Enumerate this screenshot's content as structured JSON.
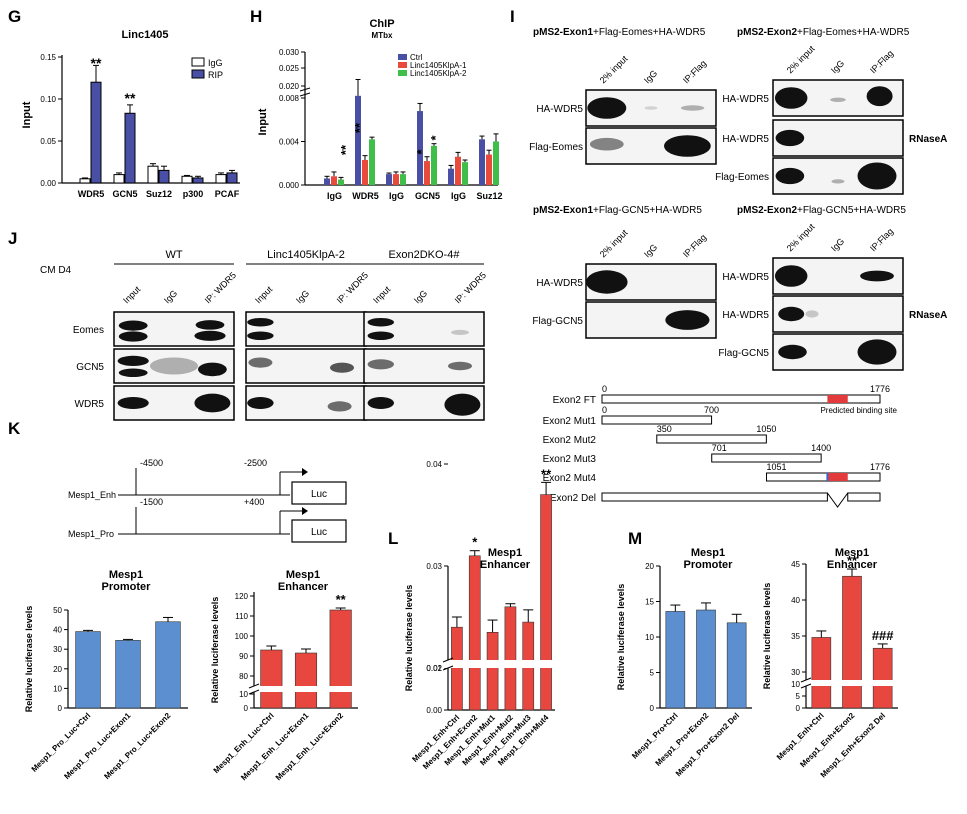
{
  "panel_letters": {
    "G": "G",
    "H": "H",
    "I": "I",
    "J": "J",
    "K": "K",
    "L": "L",
    "M": "M"
  },
  "colors": {
    "blue": "#5b8fd0",
    "navy": "#4a4fa6",
    "red": "#e84a3c",
    "green": "#3fbf4a",
    "redbar": "#e8473f"
  },
  "chart_data": [
    {
      "panel": "G",
      "type": "bar",
      "title": "Linc1405",
      "ylabel": "Input",
      "categories": [
        "WDR5",
        "GCN5",
        "Suz12",
        "p300",
        "PCAF"
      ],
      "series": [
        {
          "name": "IgG",
          "values": [
            0.005,
            0.01,
            0.02,
            0.008,
            0.01
          ],
          "errors": [
            0.001,
            0.002,
            0.003,
            0.001,
            0.002
          ]
        },
        {
          "name": "RIP",
          "values": [
            0.12,
            0.083,
            0.015,
            0.006,
            0.012
          ],
          "errors": [
            0.02,
            0.01,
            0.005,
            0.002,
            0.003
          ]
        }
      ],
      "ylim": [
        0,
        0.15
      ],
      "yticks": [
        "0.00",
        "0.05",
        "0.10",
        "0.15"
      ],
      "annotations": [
        "**",
        "**"
      ]
    },
    {
      "panel": "H",
      "type": "bar",
      "title": "ChIP",
      "subtitle": "MTbx",
      "ylabel": "Input",
      "categories": [
        "IgG",
        "WDR5",
        "IgG",
        "GCN5",
        "IgG",
        "Suz12"
      ],
      "series": [
        {
          "name": "Ctrl",
          "values": [
            0.0006,
            0.0082,
            0.001,
            0.0068,
            0.0015,
            0.0042
          ],
          "errors": [
            0.0002,
            0.0015,
            0.0001,
            0.0007,
            0.0003,
            0.0003
          ]
        },
        {
          "name": "Linc1405KlpA-1",
          "values": [
            0.0008,
            0.0023,
            0.001,
            0.0022,
            0.0026,
            0.0028
          ],
          "errors": [
            0.0004,
            0.0004,
            0.0002,
            0.0004,
            0.0004,
            0.0004
          ]
        },
        {
          "name": "Linc1405KlpA-2",
          "values": [
            0.0005,
            0.0042,
            0.001,
            0.0036,
            0.0021,
            0.004
          ],
          "errors": [
            0.0002,
            0.0002,
            0.0002,
            0.0002,
            0.0002,
            0.0007
          ]
        }
      ],
      "yticks": [
        "0.000",
        "0.004",
        "0.008",
        "0.020",
        "0.025",
        "0.030"
      ],
      "annotations": [
        "**",
        "**",
        "*",
        "*"
      ]
    },
    {
      "panel": "K",
      "type": "bar",
      "title": "Mesp1",
      "subtitle": "Promoter",
      "ylabel": "Relative luciferase levels",
      "categories": [
        "Mesp1_Pro_Luc+Ctrl",
        "Mesp1_Pro_Luc+Exon1",
        "Mesp1_Pro_Luc+Exon2"
      ],
      "values": [
        39,
        34.5,
        44
      ],
      "errors": [
        0.6,
        0.5,
        2.2
      ],
      "ylim": [
        0,
        50
      ],
      "yticks": [
        "0",
        "10",
        "20",
        "30",
        "40",
        "50"
      ]
    },
    {
      "panel": "K",
      "type": "bar",
      "title": "Mesp1",
      "subtitle": "Enhancer",
      "ylabel": "Relative luciferase levels",
      "categories": [
        "Mesp1_Enh_Luc+Ctrl",
        "Mesp1_Enh_Luc+Exon1",
        "Mesp1_Enh_Luc+Exon2"
      ],
      "values": [
        93,
        91.5,
        113
      ],
      "errors": [
        2,
        2,
        1
      ],
      "yticks": [
        "0",
        "10",
        "80",
        "90",
        "100",
        "110",
        "120"
      ],
      "annotations": [
        "**"
      ]
    },
    {
      "panel": "L",
      "type": "bar",
      "title": "Mesp1",
      "subtitle": "Enhancer",
      "ylabel": "Relative luciferase levels",
      "categories": [
        "Mesp1_Enh+Ctrl",
        "Mesp1_Enh+Exon2",
        "Mesp1_Enh+Mut1",
        "Mesp1_Enh+Mut2",
        "Mesp1_Enh+Mut3",
        "Mesp1_Enh+Mut4"
      ],
      "values": [
        0.024,
        0.031,
        0.0235,
        0.026,
        0.0245,
        0.037
      ],
      "errors": [
        0.001,
        0.0005,
        0.0012,
        0.0003,
        0.0012,
        0.0012
      ],
      "yticks": [
        "0.00",
        "0.01",
        "0.02",
        "0.03",
        "0.04"
      ],
      "annotations": [
        "*",
        "**"
      ]
    },
    {
      "panel": "M",
      "type": "bar",
      "title": "Mesp1",
      "subtitle": "Promoter",
      "ylabel": "Relative luciferase levels",
      "categories": [
        "Mesp1_Pro+Ctrl",
        "Mesp1_Pro+Exon2",
        "Mesp1_Pro+Exon2 Del"
      ],
      "values": [
        13.6,
        13.8,
        12
      ],
      "errors": [
        0.9,
        1,
        1.2
      ],
      "ylim": [
        0,
        20
      ],
      "yticks": [
        "0",
        "5",
        "10",
        "15",
        "20"
      ]
    },
    {
      "panel": "M",
      "type": "bar",
      "title": "Mesp1",
      "subtitle": "Enhancer",
      "ylabel": "Relative luciferase levels",
      "categories": [
        "Mesp1_Enh+Ctrl",
        "Mesp1_Enh+Exon2",
        "Mesp1_Enh+Exon2 Del"
      ],
      "values": [
        34.8,
        43.3,
        33.3
      ],
      "errors": [
        0.9,
        1,
        0.6
      ],
      "yticks": [
        "0",
        "5",
        "10",
        "30",
        "35",
        "40",
        "45"
      ],
      "annotations": [
        "**",
        "###"
      ]
    }
  ],
  "panel_i": {
    "blocks": [
      {
        "title_bold": "pMS2-Exon1",
        "title_rest": "+Flag-Eomes+HA-WDR5",
        "cols": [
          "2% input",
          "IgG",
          "IP:Flag"
        ],
        "rows": [
          "HA-WDR5",
          "Flag-Eomes"
        ]
      },
      {
        "title_bold": "pMS2-Exon2",
        "title_rest": "+Flag-Eomes+HA-WDR5",
        "cols": [
          "2% input",
          "IgG",
          "IP:Flag"
        ],
        "rows": [
          "HA-WDR5",
          "HA-WDR5",
          "Flag-Eomes"
        ],
        "rnase": "RNaseA"
      },
      {
        "title_bold": "pMS2-Exon1",
        "title_rest": "+Flag-GCN5+HA-WDR5",
        "cols": [
          "2% input",
          "IgG",
          "IP:Flag"
        ],
        "rows": [
          "HA-WDR5",
          "Flag-GCN5"
        ]
      },
      {
        "title_bold": "pMS2-Exon2",
        "title_rest": "+Flag-GCN5+HA-WDR5",
        "cols": [
          "2% input",
          "IgG",
          "IP:Flag"
        ],
        "rows": [
          "HA-WDR5",
          "HA-WDR5",
          "Flag-GCN5"
        ],
        "rnase": "RNaseA"
      }
    ]
  },
  "panel_j": {
    "condition": "CM D4",
    "groups": [
      "WT",
      "Linc1405KlpA-2",
      "Exon2DKO-4#"
    ],
    "cols": [
      "Input",
      "IgG",
      "IP: WDR5"
    ],
    "rows": [
      "Eomes",
      "GCN5",
      "WDR5"
    ]
  },
  "exon_map": {
    "rows": [
      "Exon2 FT",
      "Exon2 Mut1",
      "Exon2 Mut2",
      "Exon2 Mut3",
      "Exon2 Mut4",
      "Exon2 Del"
    ],
    "starts": [
      "0",
      "0",
      "350",
      "701",
      "1051"
    ],
    "ends": [
      "1776",
      "700",
      "1050",
      "1400",
      "1776"
    ],
    "site_label": "Predicted binding site"
  },
  "constructs": {
    "enh_label": "Mesp1_Enh",
    "enh_start": "-4500",
    "enh_end": "-2500",
    "pro_label": "Mesp1_Pro",
    "pro_start": "-1500",
    "pro_end": "+400",
    "luc": "Luc"
  }
}
